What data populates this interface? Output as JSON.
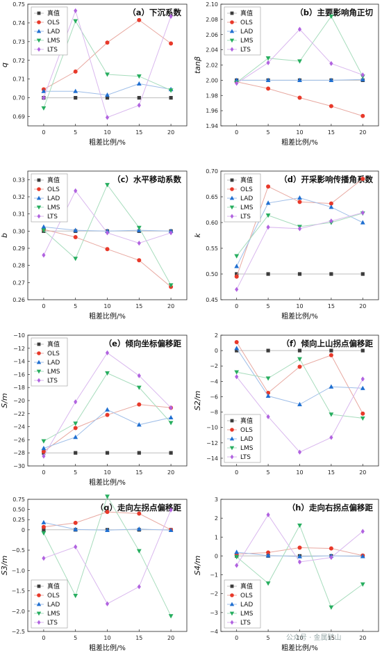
{
  "series_styles": [
    {
      "name": "真值",
      "color": "#3c3c3c",
      "line": "#bdbdbd",
      "marker": "square"
    },
    {
      "name": "OLS",
      "color": "#e8392a",
      "line": "#e8a8a0",
      "marker": "circle"
    },
    {
      "name": "LAD",
      "color": "#1f6fd1",
      "line": "#9dbde8",
      "marker": "triangle"
    },
    {
      "name": "LMS",
      "color": "#27ae5f",
      "line": "#a6dcbc",
      "marker": "triangle-down"
    },
    {
      "name": "LTS",
      "color": "#b163e0",
      "line": "#d9b7ee",
      "marker": "diamond"
    }
  ],
  "watermark": "公众号 · 金属矿山",
  "chart_data": [
    {
      "type": "line",
      "panel": "a",
      "title": "（a）下沉系数",
      "xlabel": "粗差比例/%",
      "ylabel": "q",
      "x": [
        0,
        5,
        10,
        15,
        20
      ],
      "xlim": [
        -2.5,
        22.5
      ],
      "ylim": [
        0.685,
        0.75
      ],
      "yticks": [
        0.69,
        0.7,
        0.71,
        0.72,
        0.73,
        0.74,
        0.75
      ],
      "yticklabels": [
        "0.69",
        "0.70",
        "0.71",
        "0.72",
        "0.73",
        "0.74",
        "0.75"
      ],
      "series": [
        {
          "name": "真值",
          "values": [
            0.7,
            0.7,
            0.7,
            0.7,
            0.7
          ]
        },
        {
          "name": "OLS",
          "values": [
            0.7045,
            0.714,
            0.7295,
            0.7415,
            0.729
          ]
        },
        {
          "name": "LAD",
          "values": [
            0.7035,
            0.7035,
            0.7015,
            0.7075,
            0.7045
          ]
        },
        {
          "name": "LMS",
          "values": [
            0.6945,
            0.741,
            0.7125,
            0.7115,
            0.704
          ]
        },
        {
          "name": "LTS",
          "values": [
            0.7,
            0.7465,
            0.6895,
            0.696,
            0.7435
          ]
        }
      ],
      "legend": "top-left"
    },
    {
      "type": "line",
      "panel": "b",
      "title": "（b）主要影响角正切",
      "xlabel": "粗差比例/%",
      "ylabel": "tanβ",
      "x": [
        0,
        5,
        10,
        15,
        20
      ],
      "xlim": [
        -2.5,
        22.5
      ],
      "ylim": [
        1.94,
        2.1
      ],
      "yticks": [
        1.94,
        1.96,
        1.98,
        2.0,
        2.02,
        2.04,
        2.06,
        2.08,
        2.1
      ],
      "yticklabels": [
        "1.94",
        "1.96",
        "1.98",
        "2.00",
        "2.02",
        "2.04",
        "2.06",
        "2.08",
        "2.10"
      ],
      "series": [
        {
          "name": "真值",
          "values": [
            2.0,
            2.0,
            2.0,
            2.0,
            2.0
          ]
        },
        {
          "name": "OLS",
          "values": [
            1.998,
            1.989,
            1.977,
            1.966,
            1.953
          ]
        },
        {
          "name": "LAD",
          "values": [
            2.0,
            2.0,
            2.0,
            2.0,
            2.001
          ]
        },
        {
          "name": "LMS",
          "values": [
            1.997,
            2.029,
            2.025,
            2.084,
            2.005
          ]
        },
        {
          "name": "LTS",
          "values": [
            1.996,
            2.023,
            2.067,
            2.022,
            2.007
          ]
        }
      ],
      "legend": "top-left"
    },
    {
      "type": "line",
      "panel": "c",
      "title": "（c）水平移动系数",
      "xlabel": "粗差比例/%",
      "ylabel": "b",
      "x": [
        0,
        5,
        10,
        15,
        20
      ],
      "xlim": [
        -2.5,
        22.5
      ],
      "ylim": [
        0.26,
        0.335
      ],
      "yticks": [
        0.26,
        0.27,
        0.28,
        0.29,
        0.3,
        0.31,
        0.32,
        0.33
      ],
      "yticklabels": [
        "0.26",
        "0.27",
        "0.28",
        "0.29",
        "0.30",
        "0.31",
        "0.32",
        "0.33"
      ],
      "series": [
        {
          "name": "真值",
          "values": [
            0.3,
            0.3,
            0.3,
            0.3,
            0.3
          ]
        },
        {
          "name": "OLS",
          "values": [
            0.301,
            0.2965,
            0.2895,
            0.283,
            0.2675
          ]
        },
        {
          "name": "LAD",
          "values": [
            0.3025,
            0.3005,
            0.3,
            0.3005,
            0.3
          ]
        },
        {
          "name": "LMS",
          "values": [
            0.3005,
            0.284,
            0.327,
            0.302,
            0.2685
          ]
        },
        {
          "name": "LTS",
          "values": [
            0.286,
            0.3235,
            0.299,
            0.293,
            0.299
          ]
        }
      ],
      "legend": "top-left"
    },
    {
      "type": "line",
      "panel": "d",
      "title": "（d）开采影响传播角系数",
      "xlabel": "粗差比例/%",
      "ylabel": "k",
      "x": [
        0,
        5,
        10,
        15,
        20
      ],
      "xlim": [
        -2.5,
        22.5
      ],
      "ylim": [
        0.45,
        0.7
      ],
      "yticks": [
        0.45,
        0.5,
        0.55,
        0.6,
        0.65,
        0.7
      ],
      "yticklabels": [
        "0.45",
        "0.50",
        "0.55",
        "0.60",
        "0.65",
        "0.70"
      ],
      "series": [
        {
          "name": "真值",
          "values": [
            0.5,
            0.5,
            0.5,
            0.5,
            0.5
          ]
        },
        {
          "name": "OLS",
          "values": [
            0.495,
            0.67,
            0.64,
            0.637,
            0.685
          ]
        },
        {
          "name": "LAD",
          "values": [
            0.515,
            0.638,
            0.648,
            0.63,
            0.6
          ]
        },
        {
          "name": "LMS",
          "values": [
            0.535,
            0.614,
            0.592,
            0.6,
            0.618
          ]
        },
        {
          "name": "LTS",
          "values": [
            0.47,
            0.591,
            0.588,
            0.603,
            0.619
          ]
        }
      ],
      "legend": "top-left"
    },
    {
      "type": "line",
      "panel": "e",
      "title": "（e）倾向坐标偏移距",
      "xlabel": "粗差比例/%",
      "ylabel": "S/m",
      "x": [
        0,
        5,
        10,
        15,
        20
      ],
      "xlim": [
        -2.5,
        22.5
      ],
      "ylim": [
        -30,
        -10
      ],
      "yticks": [
        -30,
        -28,
        -26,
        -24,
        -22,
        -20,
        -18,
        -16,
        -14,
        -12,
        -10
      ],
      "yticklabels": [
        "−30",
        "−28",
        "−26",
        "−24",
        "−22",
        "−20",
        "−18",
        "−16",
        "−14",
        "−12",
        "−10"
      ],
      "series": [
        {
          "name": "真值",
          "values": [
            -28,
            -28,
            -28,
            -28,
            -28
          ]
        },
        {
          "name": "OLS",
          "values": [
            -27.8,
            -24.2,
            -22.2,
            -20.6,
            -21.1
          ]
        },
        {
          "name": "LAD",
          "values": [
            -27.3,
            -25.6,
            -21.4,
            -23.7,
            -22.6
          ]
        },
        {
          "name": "LMS",
          "values": [
            -26.2,
            -23.5,
            -15.8,
            -18.0,
            -23.4
          ]
        },
        {
          "name": "LTS",
          "values": [
            -28.5,
            -20.2,
            -12.7,
            -16.2,
            -21.1
          ]
        }
      ],
      "legend": "top-left"
    },
    {
      "type": "line",
      "panel": "f",
      "title": "（f）倾向上山拐点偏移距",
      "xlabel": "",
      "ylabel": "S2/m",
      "x": [
        0,
        5,
        10,
        15,
        20
      ],
      "xlim": [
        -2.5,
        22.5
      ],
      "ylim": [
        -15,
        2
      ],
      "yticks": [
        -14,
        -12,
        -10,
        -8,
        -6,
        -4,
        -2,
        0,
        2
      ],
      "yticklabels": [
        "−14",
        "−12",
        "−10",
        "−8",
        "−6",
        "−4",
        "−2",
        "0",
        "2"
      ],
      "series": [
        {
          "name": "真值",
          "values": [
            0,
            0,
            0,
            0,
            0
          ]
        },
        {
          "name": "OLS",
          "values": [
            1.1,
            -5.5,
            -2.1,
            -0.6,
            -8.2
          ]
        },
        {
          "name": "LAD",
          "values": [
            0.3,
            -5.9,
            -7.0,
            -4.7,
            -4.9
          ]
        },
        {
          "name": "LMS",
          "values": [
            -2.8,
            -3.6,
            -1.1,
            -8.3,
            -8.8
          ]
        },
        {
          "name": "LTS",
          "values": [
            -3.4,
            -8.6,
            -13.2,
            -11.3,
            -3.7
          ]
        }
      ],
      "legend": "bottom-left"
    },
    {
      "type": "line",
      "panel": "g",
      "title": "（g）走向左拐点偏移距",
      "xlabel": "粗差比例/%",
      "ylabel": "S3/m",
      "x": [
        0,
        5,
        10,
        15,
        20
      ],
      "xlim": [
        -2.5,
        22.5
      ],
      "ylim": [
        -2.5,
        0.75
      ],
      "yticks": [
        -2.5,
        -2.0,
        -1.5,
        -1.0,
        -0.5,
        0.0,
        0.25,
        0.5,
        0.75
      ],
      "yticklabels": [
        "−2.5",
        "−2.0",
        "−1.5",
        "−1.0",
        "−0.5",
        "0",
        "0.25",
        "0.50",
        "0.75"
      ],
      "series": [
        {
          "name": "真值",
          "values": [
            0,
            0,
            0,
            0,
            0
          ]
        },
        {
          "name": "OLS",
          "values": [
            0.07,
            0.17,
            0.44,
            0.4,
            0.0
          ]
        },
        {
          "name": "LAD",
          "values": [
            0.18,
            0.01,
            -0.01,
            0.02,
            -0.01
          ]
        },
        {
          "name": "LMS",
          "values": [
            -0.08,
            -1.62,
            0.82,
            -0.52,
            -2.12
          ]
        },
        {
          "name": "LTS",
          "values": [
            -0.7,
            -0.42,
            -1.82,
            -1.4,
            0.49
          ]
        }
      ],
      "legend": "bottom-left"
    },
    {
      "type": "line",
      "panel": "h",
      "title": "（h）走向右拐点偏移距",
      "xlabel": "粗差比例/%",
      "ylabel": "S4/m",
      "x": [
        0,
        5,
        10,
        15,
        20
      ],
      "xlim": [
        -2.5,
        22.5
      ],
      "ylim": [
        -4,
        3
      ],
      "yticks": [
        -4,
        -3,
        -2,
        -1,
        0,
        1,
        2,
        3
      ],
      "yticklabels": [
        "−4",
        "−3",
        "−2",
        "−1",
        "0",
        "1",
        "2",
        "3"
      ],
      "series": [
        {
          "name": "真值",
          "values": [
            0,
            0,
            0,
            0,
            0
          ]
        },
        {
          "name": "OLS",
          "values": [
            0.1,
            0.18,
            0.44,
            0.4,
            0.02
          ]
        },
        {
          "name": "LAD",
          "values": [
            0.2,
            0.02,
            -0.03,
            0.0,
            -0.02
          ]
        },
        {
          "name": "LMS",
          "values": [
            -0.05,
            -1.45,
            1.62,
            -2.72,
            -1.5
          ]
        },
        {
          "name": "LTS",
          "values": [
            -0.5,
            2.18,
            -0.32,
            -0.08,
            1.3
          ]
        }
      ],
      "legend": "bottom-left"
    }
  ]
}
